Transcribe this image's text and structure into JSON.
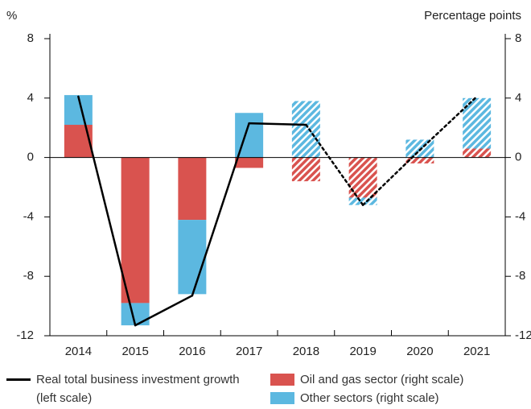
{
  "chart_data": {
    "type": "bar_line",
    "y_label": "%",
    "y2_label": "Percentage points",
    "categories": [
      "2014",
      "2015",
      "2016",
      "2017",
      "2018",
      "2019",
      "2020",
      "2021"
    ],
    "hatched_from": "2018",
    "series": [
      {
        "name": "Oil and gas sector (right scale)",
        "color": "#d9534f",
        "kind": "bar",
        "axis": "y2",
        "values": [
          2.2,
          -9.8,
          -4.2,
          -0.7,
          -1.6,
          -2.7,
          -0.4,
          0.6
        ]
      },
      {
        "name": "Other sectors (right scale)",
        "color": "#5cb8e0",
        "kind": "bar",
        "axis": "y2",
        "values": [
          2.0,
          -1.5,
          -5.0,
          3.0,
          3.8,
          -0.5,
          1.2,
          3.4
        ]
      },
      {
        "name": "Real total business investment growth (left scale)",
        "color": "#000000",
        "kind": "line",
        "values": [
          4.1,
          -11.3,
          -9.3,
          2.3,
          2.2,
          -3.2,
          0.5,
          4.1
        ]
      }
    ],
    "ylim": [
      -12,
      8
    ],
    "yticks": [
      -12,
      -8,
      -4,
      0,
      4,
      8
    ],
    "y2lim": [
      -12,
      8
    ],
    "y2ticks": [
      -12,
      -8,
      -4,
      0,
      4,
      8
    ]
  }
}
